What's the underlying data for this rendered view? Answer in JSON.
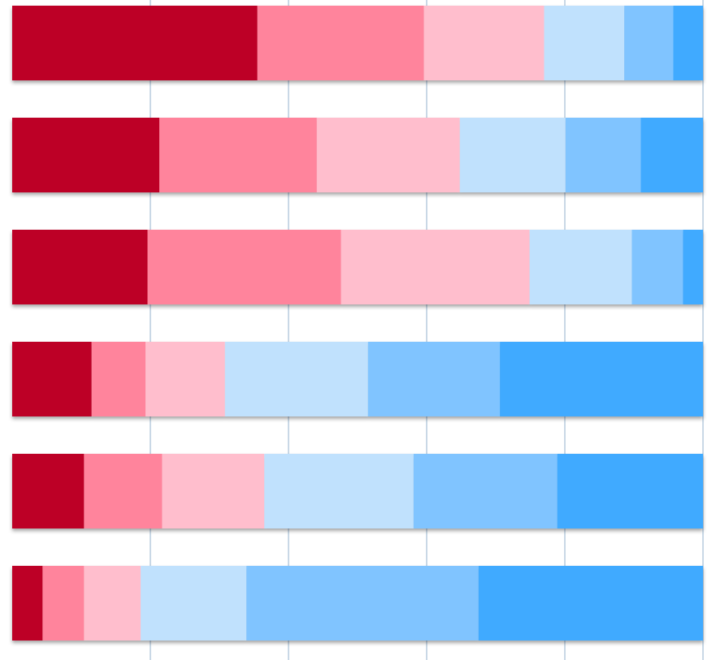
{
  "chart_data": {
    "type": "stacked-bar-horizontal",
    "categories": [
      null,
      null,
      null,
      null,
      null,
      null
    ],
    "xlim": [
      0,
      100
    ],
    "xticks": [
      20,
      40,
      60,
      80,
      100
    ],
    "grid": true,
    "series": [
      {
        "color": "#bd0026",
        "values": [
          35.5,
          21.3,
          19.6,
          11.5,
          10.4,
          4.4
        ]
      },
      {
        "color": "#ff849c",
        "values": [
          24.1,
          22.8,
          28.0,
          7.8,
          11.3,
          6.0
        ]
      },
      {
        "color": "#ffbecd",
        "values": [
          17.4,
          20.7,
          27.3,
          11.5,
          14.8,
          8.2
        ]
      },
      {
        "color": "#c0e1fd",
        "values": [
          11.6,
          15.3,
          14.8,
          20.7,
          21.6,
          15.3
        ]
      },
      {
        "color": "#80c4ff",
        "values": [
          7.1,
          10.9,
          7.4,
          19.1,
          20.8,
          33.6
        ]
      },
      {
        "color": "#3faaff",
        "values": [
          4.3,
          9.0,
          2.9,
          29.4,
          21.1,
          32.5
        ]
      }
    ]
  }
}
